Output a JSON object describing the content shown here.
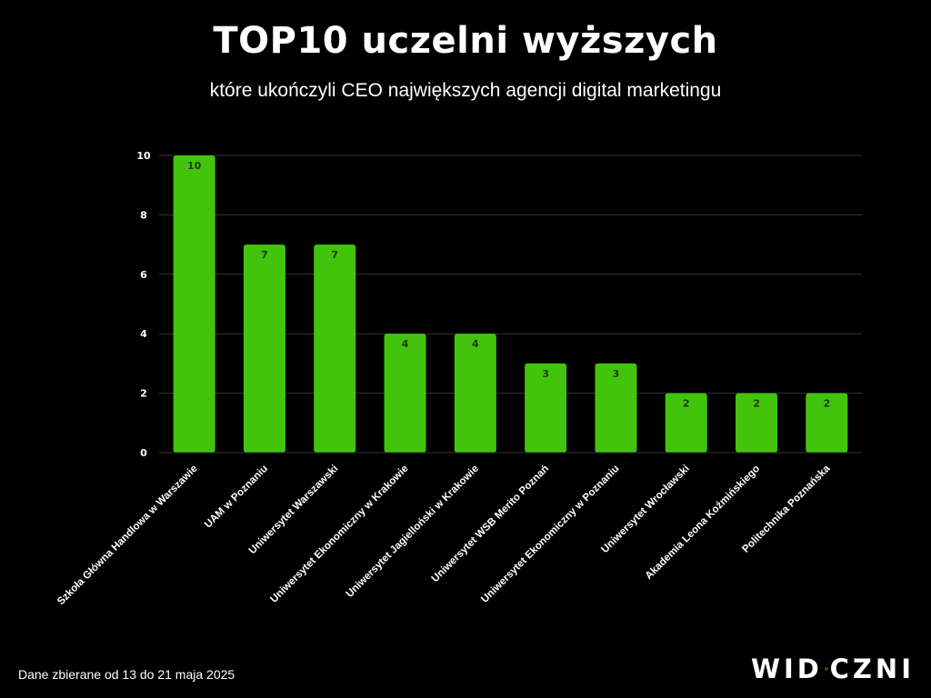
{
  "title": "TOP10 uczelni wyższych",
  "subtitle": "które ukończyli CEO największych agencji digital marketingu",
  "footer": "Dane zbierane od 13 do 21 maja 2025",
  "logo": {
    "left": "WID",
    "right": "CZNI",
    "icon": "snail-icon"
  },
  "colors": {
    "bar": "#43c40c",
    "grid": "#333333",
    "background": "#000000",
    "text": "#ffffff",
    "bar_label": "#1f3a08"
  },
  "chart_data": {
    "type": "bar",
    "categories": [
      "Szkoła Główna Handlowa w Warszawie",
      "UAM w Poznaniu",
      "Uniwersytet Warszawski",
      "Uniwersytet Ekonomiczny w Krakowie",
      "Uniwersytet Jagielloński w Krakowie",
      "Uniwersytet WSB Merito Poznań",
      "Uniwersytet Ekonomiczny w Poznaniu",
      "Uniwersytet Wrocławski",
      "Akademia Leona Koźmińskiego",
      "Politechnika Poznańska"
    ],
    "values": [
      10,
      7,
      7,
      4,
      4,
      3,
      3,
      2,
      2,
      2
    ],
    "yticks": [
      "0",
      "2",
      "4",
      "6",
      "8",
      "10"
    ],
    "ylim": [
      0,
      10
    ],
    "grid": true,
    "data_labels": true
  }
}
